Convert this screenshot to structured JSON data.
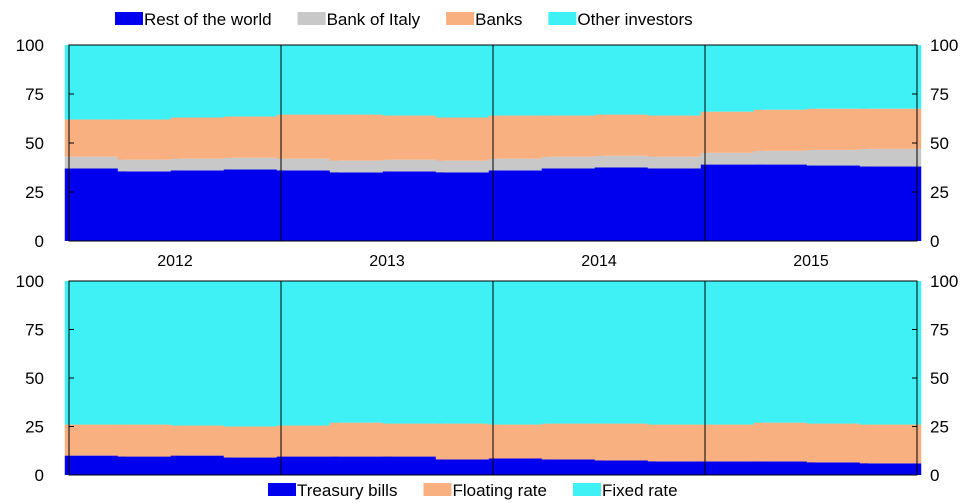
{
  "chart_data": [
    {
      "type": "bar",
      "stacked": true,
      "legend_position": "top",
      "legend": [
        "Rest of the world",
        "Bank of Italy",
        "Banks",
        "Other investors"
      ],
      "colors": [
        "#0000ee",
        "#c8c8c8",
        "#f9b081",
        "#3ff0f5"
      ],
      "group_labels": [
        "2012",
        "2013",
        "2014",
        "2015"
      ],
      "bars_per_group": 4,
      "ylim": [
        0,
        100
      ],
      "yticks": [
        "0",
        "25",
        "50",
        "75",
        "100"
      ],
      "series": [
        {
          "name": "Rest of the world",
          "values": [
            37,
            35.5,
            36,
            36.5,
            36,
            35,
            35.5,
            35,
            36,
            37,
            37.5,
            37,
            39,
            39,
            38.5,
            38
          ]
        },
        {
          "name": "Bank of Italy",
          "values": [
            6,
            6,
            6,
            6,
            6,
            6,
            6,
            6,
            6,
            6,
            6,
            6,
            6,
            7,
            8,
            9
          ]
        },
        {
          "name": "Banks",
          "values": [
            19,
            20.5,
            21,
            21,
            22.5,
            23.5,
            22.5,
            22,
            22,
            21,
            21,
            21,
            21,
            21,
            21,
            20.5
          ]
        },
        {
          "name": "Other investors",
          "values": [
            38,
            38,
            37,
            36.5,
            35.5,
            35.5,
            36,
            37,
            36,
            36,
            35.5,
            36,
            34,
            33,
            32.5,
            32.5
          ]
        }
      ]
    },
    {
      "type": "bar",
      "stacked": true,
      "legend_position": "bottom",
      "legend": [
        "Treasury bills",
        "Floating rate",
        "Fixed rate"
      ],
      "colors": [
        "#0000ee",
        "#f9b081",
        "#3ff0f5"
      ],
      "group_labels": [
        "2012",
        "2013",
        "2014",
        "2015"
      ],
      "bars_per_group": 4,
      "ylim": [
        0,
        100
      ],
      "yticks": [
        "0",
        "25",
        "50",
        "75",
        "100"
      ],
      "series": [
        {
          "name": "Treasury bills",
          "values": [
            10,
            9.5,
            10,
            9,
            9.5,
            9.5,
            9.5,
            8,
            8.5,
            8,
            7.5,
            7,
            7,
            7,
            6.5,
            6
          ]
        },
        {
          "name": "Floating rate",
          "values": [
            16,
            16.5,
            15.5,
            16,
            16,
            17.5,
            17,
            18.5,
            17.5,
            18.5,
            19,
            19,
            19,
            20,
            20,
            20
          ]
        },
        {
          "name": "Fixed rate",
          "values": [
            74,
            74,
            74.5,
            75,
            74.5,
            73,
            73.5,
            73.5,
            74,
            73.5,
            73.5,
            74,
            74,
            73,
            73.5,
            74
          ]
        }
      ]
    }
  ]
}
